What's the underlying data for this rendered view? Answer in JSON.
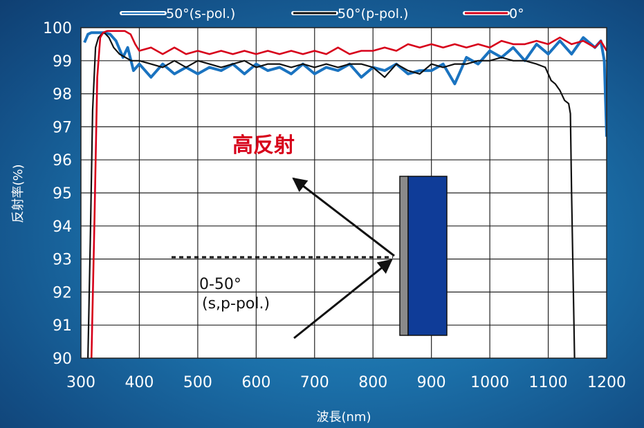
{
  "chart_data": {
    "type": "line",
    "title": "",
    "xlabel": "波長(nm)",
    "ylabel": "反射率(%)",
    "xlim": [
      300,
      1200
    ],
    "ylim": [
      90,
      100
    ],
    "xticks": [
      "300",
      "400",
      "500",
      "600",
      "700",
      "800",
      "900",
      "1000",
      "1100",
      "1200"
    ],
    "yticks": [
      "90",
      "91",
      "92",
      "93",
      "94",
      "95",
      "96",
      "97",
      "98",
      "99",
      "100"
    ],
    "grid": true,
    "legend_position": "top",
    "series": [
      {
        "name": "50°(s-pol.)",
        "color": "#1a73c0",
        "x": [
          306,
          312,
          318,
          325,
          332,
          340,
          350,
          360,
          372,
          380,
          390,
          400,
          420,
          440,
          460,
          480,
          500,
          520,
          540,
          560,
          580,
          600,
          620,
          640,
          660,
          680,
          700,
          720,
          740,
          760,
          780,
          800,
          820,
          840,
          860,
          880,
          900,
          920,
          940,
          960,
          980,
          1000,
          1020,
          1040,
          1060,
          1080,
          1100,
          1120,
          1140,
          1160,
          1180,
          1190,
          1196,
          1200
        ],
        "y": [
          99.55,
          99.8,
          99.85,
          99.85,
          99.85,
          99.85,
          99.8,
          99.6,
          99.1,
          99.4,
          98.7,
          98.9,
          98.5,
          98.9,
          98.6,
          98.8,
          98.6,
          98.8,
          98.7,
          98.9,
          98.6,
          98.9,
          98.7,
          98.8,
          98.6,
          98.9,
          98.6,
          98.8,
          98.7,
          98.9,
          98.5,
          98.8,
          98.7,
          98.9,
          98.6,
          98.7,
          98.7,
          98.9,
          98.3,
          99.1,
          98.9,
          99.3,
          99.1,
          99.4,
          99.0,
          99.5,
          99.2,
          99.6,
          99.2,
          99.7,
          99.4,
          99.6,
          99.0,
          96.7
        ]
      },
      {
        "name": "50°(p-pol.)",
        "color": "#111111",
        "x": [
          312,
          316,
          320,
          325,
          330,
          335,
          340,
          348,
          356,
          366,
          376,
          386,
          400,
          420,
          440,
          460,
          480,
          500,
          520,
          540,
          560,
          580,
          600,
          620,
          640,
          660,
          680,
          700,
          720,
          740,
          760,
          780,
          800,
          820,
          840,
          860,
          880,
          900,
          920,
          940,
          960,
          980,
          1000,
          1020,
          1040,
          1060,
          1080,
          1095,
          1105,
          1112,
          1120,
          1128,
          1135,
          1138,
          1140,
          1143,
          1145
        ],
        "y": [
          90.0,
          93.5,
          97.5,
          99.4,
          99.7,
          99.8,
          99.85,
          99.7,
          99.4,
          99.2,
          99.1,
          99.0,
          99.0,
          98.9,
          98.8,
          99.0,
          98.8,
          99.0,
          98.9,
          98.8,
          98.9,
          99.0,
          98.8,
          98.9,
          98.9,
          98.8,
          98.9,
          98.8,
          98.9,
          98.8,
          98.9,
          98.9,
          98.8,
          98.5,
          98.9,
          98.7,
          98.6,
          98.9,
          98.8,
          98.9,
          98.9,
          99.0,
          99.0,
          99.1,
          99.0,
          99.0,
          98.9,
          98.8,
          98.4,
          98.3,
          98.1,
          97.8,
          97.7,
          97.4,
          95.0,
          92.0,
          90.0
        ]
      },
      {
        "name": "0°",
        "color": "#d7001a",
        "x": [
          318,
          323,
          328,
          333,
          338,
          345,
          355,
          365,
          375,
          385,
          393,
          400,
          420,
          440,
          460,
          480,
          500,
          520,
          540,
          560,
          580,
          600,
          620,
          640,
          660,
          680,
          700,
          720,
          740,
          760,
          780,
          800,
          820,
          840,
          860,
          880,
          900,
          920,
          940,
          960,
          980,
          1000,
          1020,
          1040,
          1060,
          1080,
          1100,
          1120,
          1140,
          1160,
          1180,
          1190,
          1200
        ],
        "y": [
          90.0,
          94.0,
          98.5,
          99.7,
          99.85,
          99.9,
          99.9,
          99.9,
          99.9,
          99.8,
          99.5,
          99.3,
          99.4,
          99.2,
          99.4,
          99.2,
          99.3,
          99.2,
          99.3,
          99.2,
          99.3,
          99.2,
          99.3,
          99.2,
          99.3,
          99.2,
          99.3,
          99.2,
          99.4,
          99.2,
          99.3,
          99.3,
          99.4,
          99.3,
          99.5,
          99.4,
          99.5,
          99.4,
          99.5,
          99.4,
          99.5,
          99.4,
          99.6,
          99.5,
          99.5,
          99.6,
          99.5,
          99.7,
          99.5,
          99.6,
          99.4,
          99.6,
          99.3
        ]
      }
    ],
    "annotations": {
      "high_reflection": "高反射",
      "angle_range": "0-50°",
      "polarization": "(s,p-pol.)"
    },
    "mirror_colors": {
      "substrate": "#0f3c98",
      "coating": "#8a8a8a"
    }
  }
}
